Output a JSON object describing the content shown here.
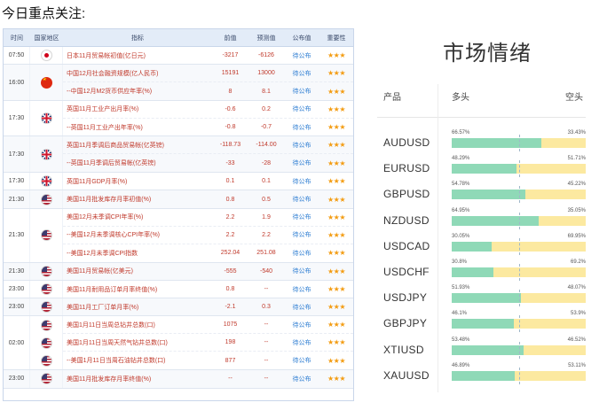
{
  "heading": "今日重点关注:",
  "calendar": {
    "columns": {
      "time": "时间",
      "country": "国家地区",
      "indicator": "指标",
      "previous": "前值",
      "forecast": "预测值",
      "published": "公布值",
      "importance": "重要性"
    },
    "groups": [
      {
        "time": "07:50",
        "flags": [
          "jp"
        ],
        "rows": [
          {
            "indicator": "日本11月贸易帐初值(亿日元)",
            "previous": "-3217",
            "forecast": "-6126",
            "published": "待公布",
            "stars": "★★★"
          }
        ]
      },
      {
        "time": "16:00",
        "flags": [
          "cn"
        ],
        "rows": [
          {
            "indicator": "中国12月社会融资规模(亿人民币)",
            "previous": "15191",
            "forecast": "13000",
            "published": "待公布",
            "stars": "★★★"
          },
          {
            "indicator": "--中国12月M2货币供应年率(%)",
            "previous": "8",
            "forecast": "8.1",
            "published": "待公布",
            "stars": "★★★"
          }
        ]
      },
      {
        "time": "17:30",
        "flags": [
          "uk"
        ],
        "rows": [
          {
            "indicator": "英国11月工业产出月率(%)",
            "previous": "-0.6",
            "forecast": "0.2",
            "published": "待公布",
            "stars": "★★★"
          },
          {
            "indicator": "--英国11月工业产出年率(%)",
            "previous": "-0.8",
            "forecast": "-0.7",
            "published": "待公布",
            "stars": "★★★"
          }
        ]
      },
      {
        "time": "17:30",
        "flags": [
          "uk"
        ],
        "rows": [
          {
            "indicator": "英国11月季调后商品贸易帐(亿英镑)",
            "previous": "-118.73",
            "forecast": "-114.00",
            "published": "待公布",
            "stars": "★★★"
          },
          {
            "indicator": "--英国11月季调后贸易帐(亿英镑)",
            "previous": "-33",
            "forecast": "-28",
            "published": "待公布",
            "stars": "★★★"
          }
        ]
      },
      {
        "time": "17:30",
        "flags": [
          "uk"
        ],
        "rows": [
          {
            "indicator": "英国11月GDP月率(%)",
            "previous": "0.1",
            "forecast": "0.1",
            "published": "待公布",
            "stars": "★★★"
          }
        ]
      },
      {
        "time": "21:30",
        "flags": [
          "us"
        ],
        "rows": [
          {
            "indicator": "美国11月批发库存月率初值(%)",
            "previous": "0.8",
            "forecast": "0.5",
            "published": "待公布",
            "stars": "★★★"
          }
        ]
      },
      {
        "time": "21:30",
        "flags": [
          "us"
        ],
        "rows": [
          {
            "indicator": "美国12月未季调CPI年率(%)",
            "previous": "2.2",
            "forecast": "1.9",
            "published": "待公布",
            "stars": "★★★"
          },
          {
            "indicator": "--美国12月未季调核心CPI年率(%)",
            "previous": "2.2",
            "forecast": "2.2",
            "published": "待公布",
            "stars": "★★★"
          },
          {
            "indicator": "--美国12月未季调CPI指数",
            "previous": "252.04",
            "forecast": "251.08",
            "published": "待公布",
            "stars": "★★★"
          }
        ]
      },
      {
        "time": "21:30",
        "flags": [
          "us"
        ],
        "rows": [
          {
            "indicator": "美国11月贸易帐(亿美元)",
            "previous": "-555",
            "forecast": "-540",
            "published": "待公布",
            "stars": "★★★"
          }
        ]
      },
      {
        "time": "23:00",
        "flags": [
          "us"
        ],
        "rows": [
          {
            "indicator": "美国11月耐用品订单月率终值(%)",
            "previous": "0.8",
            "forecast": "--",
            "published": "待公布",
            "stars": "★★★"
          }
        ]
      },
      {
        "time": "23:00",
        "flags": [
          "us"
        ],
        "rows": [
          {
            "indicator": "美国11月工厂订单月率(%)",
            "previous": "-2.1",
            "forecast": "0.3",
            "published": "待公布",
            "stars": "★★★"
          }
        ]
      },
      {
        "time": "02:00",
        "flags": [
          "us",
          "us",
          "us"
        ],
        "rows": [
          {
            "indicator": "美国1月11日当周总钻井总数(口)",
            "previous": "1075",
            "forecast": "--",
            "published": "待公布",
            "stars": "★★★"
          },
          {
            "indicator": "美国1月11日当周天然气钻井总数(口)",
            "previous": "198",
            "forecast": "--",
            "published": "待公布",
            "stars": "★★★"
          },
          {
            "indicator": "--美国1月11日当周石油钻井总数(口)",
            "previous": "877",
            "forecast": "--",
            "published": "待公布",
            "stars": "★★★"
          }
        ]
      },
      {
        "time": "23:00",
        "flags": [
          "us"
        ],
        "rows": [
          {
            "indicator": "美国11月批发库存月率终值(%)",
            "previous": "--",
            "forecast": "--",
            "published": "待公布",
            "stars": "★★★"
          }
        ]
      }
    ]
  },
  "sentiment": {
    "title": "市场情绪",
    "headers": {
      "product": "产品",
      "long": "多头",
      "short": "空头"
    },
    "colors": {
      "long": "#8fd9b7",
      "short": "#fce9a0"
    },
    "rows": [
      {
        "symbol": "AUDUSD",
        "long": 66.57,
        "long_label": "66.57%",
        "short_label": "33.43%"
      },
      {
        "symbol": "EURUSD",
        "long": 48.29,
        "long_label": "48.29%",
        "short_label": "51.71%"
      },
      {
        "symbol": "GBPUSD",
        "long": 54.78,
        "long_label": "54.78%",
        "short_label": "45.22%"
      },
      {
        "symbol": "NZDUSD",
        "long": 64.95,
        "long_label": "64.95%",
        "short_label": "35.05%"
      },
      {
        "symbol": "USDCAD",
        "long": 30.05,
        "long_label": "30.05%",
        "short_label": "69.95%"
      },
      {
        "symbol": "USDCHF",
        "long": 30.8,
        "long_label": "30.8%",
        "short_label": "69.2%"
      },
      {
        "symbol": "USDJPY",
        "long": 51.93,
        "long_label": "51.93%",
        "short_label": "48.07%"
      },
      {
        "symbol": "GBPJPY",
        "long": 46.1,
        "long_label": "46.1%",
        "short_label": "53.9%"
      },
      {
        "symbol": "XTIUSD",
        "long": 53.48,
        "long_label": "53.48%",
        "short_label": "46.52%"
      },
      {
        "symbol": "XAUUSD",
        "long": 46.89,
        "long_label": "46.89%",
        "short_label": "53.11%"
      }
    ]
  }
}
